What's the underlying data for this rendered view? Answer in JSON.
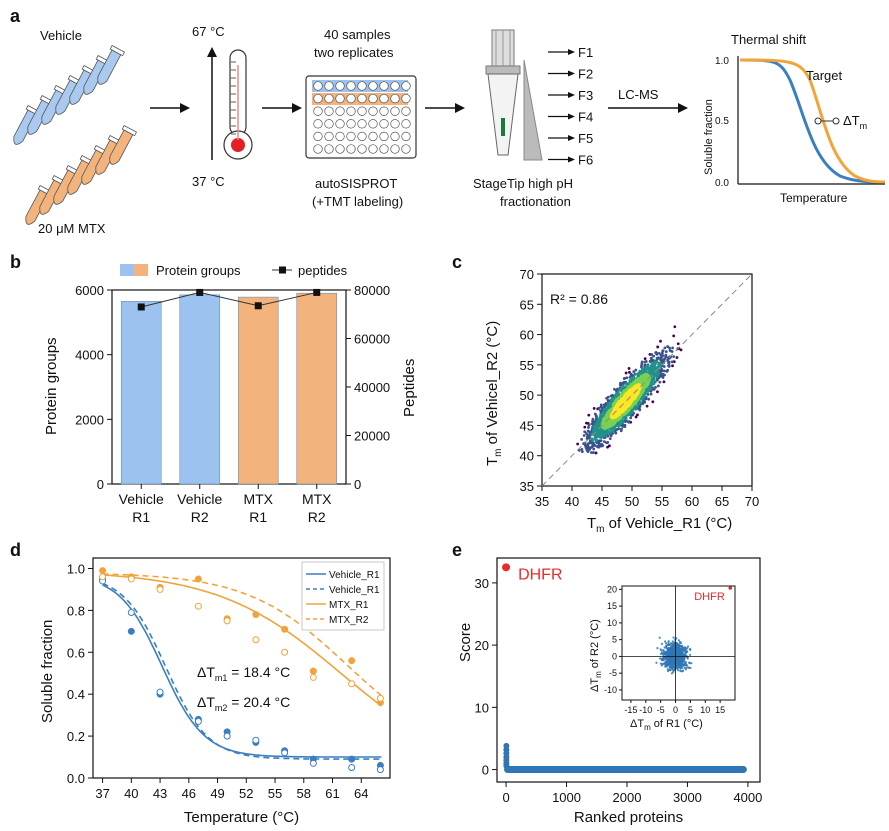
{
  "panels": {
    "a": {
      "label": "a",
      "vehicle": "Vehicle",
      "mtx": "20 μM MTX",
      "temp_high": "67 °C",
      "temp_low": "37 °C",
      "samples_line1": "40 samples",
      "samples_line2": "two replicates",
      "plate_line1": "autoSISPROT",
      "plate_line2": "(+TMT labeling)",
      "fractions": [
        "F1",
        "F2",
        "F3",
        "F4",
        "F5",
        "F6"
      ],
      "stagetip_line1": "StageTip high pH",
      "stagetip_line2": "fractionation",
      "lcms": "LC-MS",
      "thermal_title": "Thermal shift",
      "target": "Target",
      "delta": "ΔT",
      "delta_sub": "m",
      "ylabel": "Soluble fraction",
      "xlabel": "Temperature",
      "yticks": [
        "1.0",
        "0.5",
        "0.0"
      ]
    },
    "b": {
      "label": "b"
    },
    "c": {
      "label": "c"
    },
    "d": {
      "label": "d",
      "annot1": "ΔT",
      "annot1_sub": "m1",
      "annot1_val": " = 18.4 °C",
      "annot2": "ΔT",
      "annot2_sub": "m2",
      "annot2_val": " = 20.4 °C"
    },
    "e": {
      "label": "e",
      "dhfr": "DHFR"
    }
  },
  "chart_data": [
    {
      "id": "b",
      "type": "bar",
      "categories": [
        [
          "Vehicle",
          "R1"
        ],
        [
          "Vehicle",
          "R2"
        ],
        [
          "MTX",
          "R1"
        ],
        [
          "MTX",
          "R2"
        ]
      ],
      "series": [
        {
          "name": "Protein groups",
          "values": [
            5650,
            5850,
            5780,
            5900
          ]
        },
        {
          "name": "peptides",
          "values": [
            73000,
            79000,
            73500,
            79000
          ]
        }
      ],
      "bar_colors": [
        "#9cc3f0",
        "#9cc3f0",
        "#f2b47c",
        "#f2b47c"
      ],
      "ylabel": "Protein groups",
      "y2label": "Peptides",
      "ylim": [
        0,
        6000
      ],
      "y2lim": [
        0,
        80000
      ],
      "yticks": [
        0,
        2000,
        4000,
        6000
      ],
      "y2ticks": [
        0,
        20000,
        40000,
        60000,
        80000
      ],
      "legend": "top"
    },
    {
      "id": "c",
      "type": "scatter",
      "xlabel_main": "T",
      "xlabel_sub": "m",
      "xlabel_rest": " of Vehicle_R1 (°C)",
      "ylabel_main": "T",
      "ylabel_sub": "m",
      "ylabel_rest": " of  Vehicel_R2 (°C)",
      "annotation": "R² = 0.86",
      "xlim": [
        35,
        70
      ],
      "ylim": [
        35,
        70
      ],
      "ticks": [
        35,
        40,
        45,
        50,
        55,
        60,
        65,
        70
      ],
      "colors": {
        "low": "#3b0f6f",
        "mid": "#21918c",
        "high": "#fde725"
      }
    },
    {
      "id": "d",
      "type": "line",
      "xlabel": "Temperature (°C)",
      "ylabel": "Soluble fraction",
      "xticks": [
        37,
        40,
        43,
        46,
        49,
        52,
        55,
        58,
        61,
        64
      ],
      "yticks": [
        0.0,
        0.2,
        0.4,
        0.6,
        0.8,
        1.0
      ],
      "xlim": [
        36,
        67
      ],
      "ylim": [
        0,
        1.05
      ],
      "series": [
        {
          "name": "Vehicle_R1",
          "color": "#3a7fc1",
          "dash": false,
          "x": [
            37,
            40,
            43,
            47,
            50,
            53,
            56,
            59,
            63,
            66
          ],
          "y": [
            0.95,
            0.7,
            0.4,
            0.28,
            0.22,
            0.17,
            0.13,
            0.09,
            0.09,
            0.06
          ]
        },
        {
          "name": "Vehicle_R1",
          "color": "#3a7fc1",
          "dash": true,
          "x": [
            37,
            40,
            43,
            47,
            50,
            53,
            56,
            59,
            63,
            66
          ],
          "y": [
            0.94,
            0.79,
            0.41,
            0.27,
            0.2,
            0.18,
            0.12,
            0.07,
            0.05,
            0.04
          ]
        },
        {
          "name": "MTX_R1",
          "color": "#f2a33a",
          "dash": false,
          "x": [
            37,
            40,
            43,
            47,
            50,
            53,
            56,
            59,
            63,
            66
          ],
          "y": [
            0.99,
            0.96,
            0.91,
            0.95,
            0.76,
            0.78,
            0.71,
            0.51,
            0.56,
            0.36
          ]
        },
        {
          "name": "MTX_R2",
          "color": "#f2a33a",
          "dash": true,
          "x": [
            37,
            40,
            43,
            47,
            50,
            53,
            56,
            59,
            63,
            66
          ],
          "y": [
            0.96,
            0.95,
            0.9,
            0.82,
            0.75,
            0.66,
            0.6,
            0.48,
            0.45,
            0.38
          ]
        }
      ],
      "legend": "top-right"
    },
    {
      "id": "e",
      "type": "scatter",
      "xlabel": "Ranked proteins",
      "ylabel": "Score",
      "xticks": [
        0,
        1000,
        2000,
        3000,
        4000
      ],
      "yticks": [
        0,
        10,
        20,
        30
      ],
      "xlim": [
        -150,
        4200
      ],
      "ylim": [
        -2,
        34
      ],
      "highlight": {
        "name": "DHFR",
        "x": 0,
        "y": 32.5,
        "color": "#e82b2b"
      },
      "inset": {
        "xlabel_main": "ΔT",
        "xlabel_sub": "m",
        "xlabel_rest": " of R1 (°C)",
        "ylabel_main": "ΔT",
        "ylabel_sub": "m",
        "ylabel_rest": " of R2 (°C)",
        "xticks": [
          -15,
          -10,
          -5,
          0,
          5,
          10,
          15
        ],
        "xtick_labels": [
          "-15",
          "-10",
          "-5",
          "0",
          "5",
          "10",
          "15"
        ],
        "yticks": [
          -10,
          -5,
          0,
          5,
          10,
          15,
          20
        ],
        "xlim": [
          -18,
          20
        ],
        "ylim": [
          -13,
          21
        ],
        "highlight": {
          "name": "DHFR",
          "x": 18.4,
          "y": 20.4
        }
      },
      "color": "#2f77b4"
    }
  ]
}
